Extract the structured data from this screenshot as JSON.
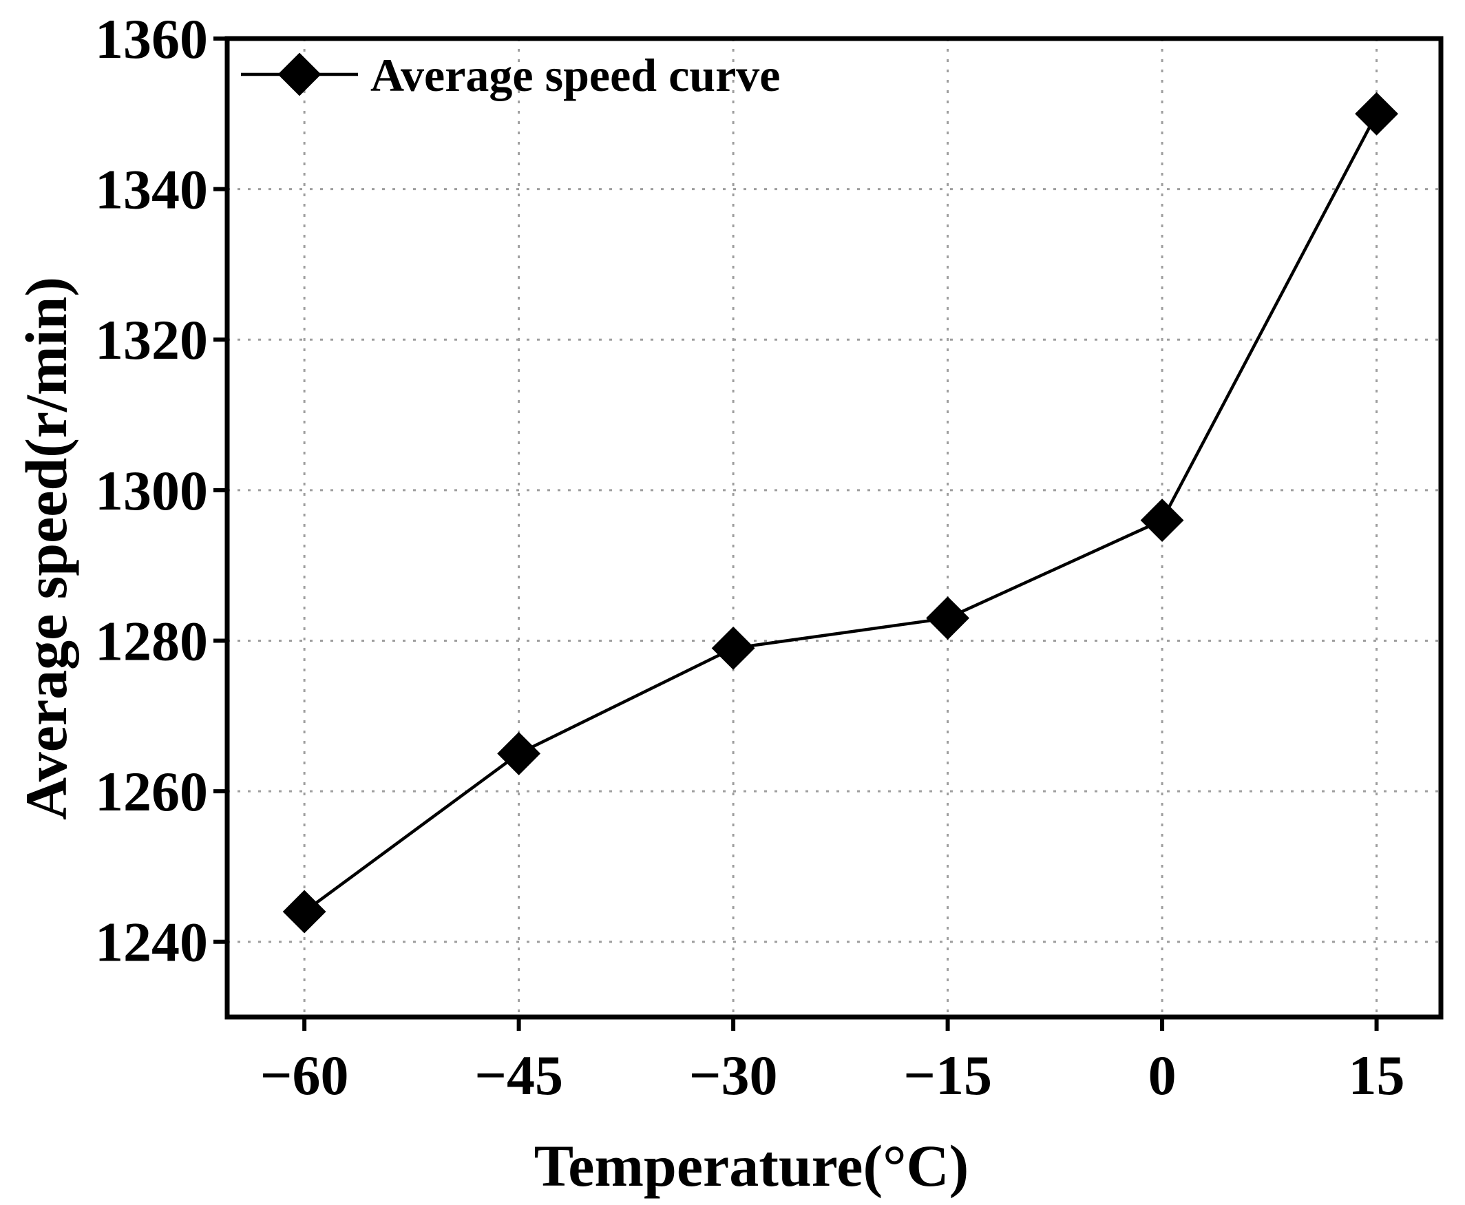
{
  "chart_data": {
    "type": "line",
    "title": "",
    "xlabel": "Temperature(°C)",
    "ylabel": "Average speed(r/min)",
    "x": [
      -60,
      -45,
      -30,
      -15,
      0,
      15
    ],
    "x_tick_labels": [
      "−60",
      "−45",
      "−30",
      "−15",
      "0",
      "15"
    ],
    "xlim": [
      -65.4,
      19.5
    ],
    "ylim": [
      1230,
      1360
    ],
    "y_ticks": [
      1240,
      1260,
      1280,
      1300,
      1320,
      1340,
      1360
    ],
    "y_tick_labels": [
      "1240",
      "1260",
      "1280",
      "1300",
      "1320",
      "1340",
      "1360"
    ],
    "grid": true,
    "legend_position": "top-left",
    "series": [
      {
        "name": "Average speed curve",
        "marker": "diamond",
        "color": "#000000",
        "values": [
          1244,
          1265,
          1279,
          1283,
          1296,
          1350
        ]
      }
    ]
  }
}
